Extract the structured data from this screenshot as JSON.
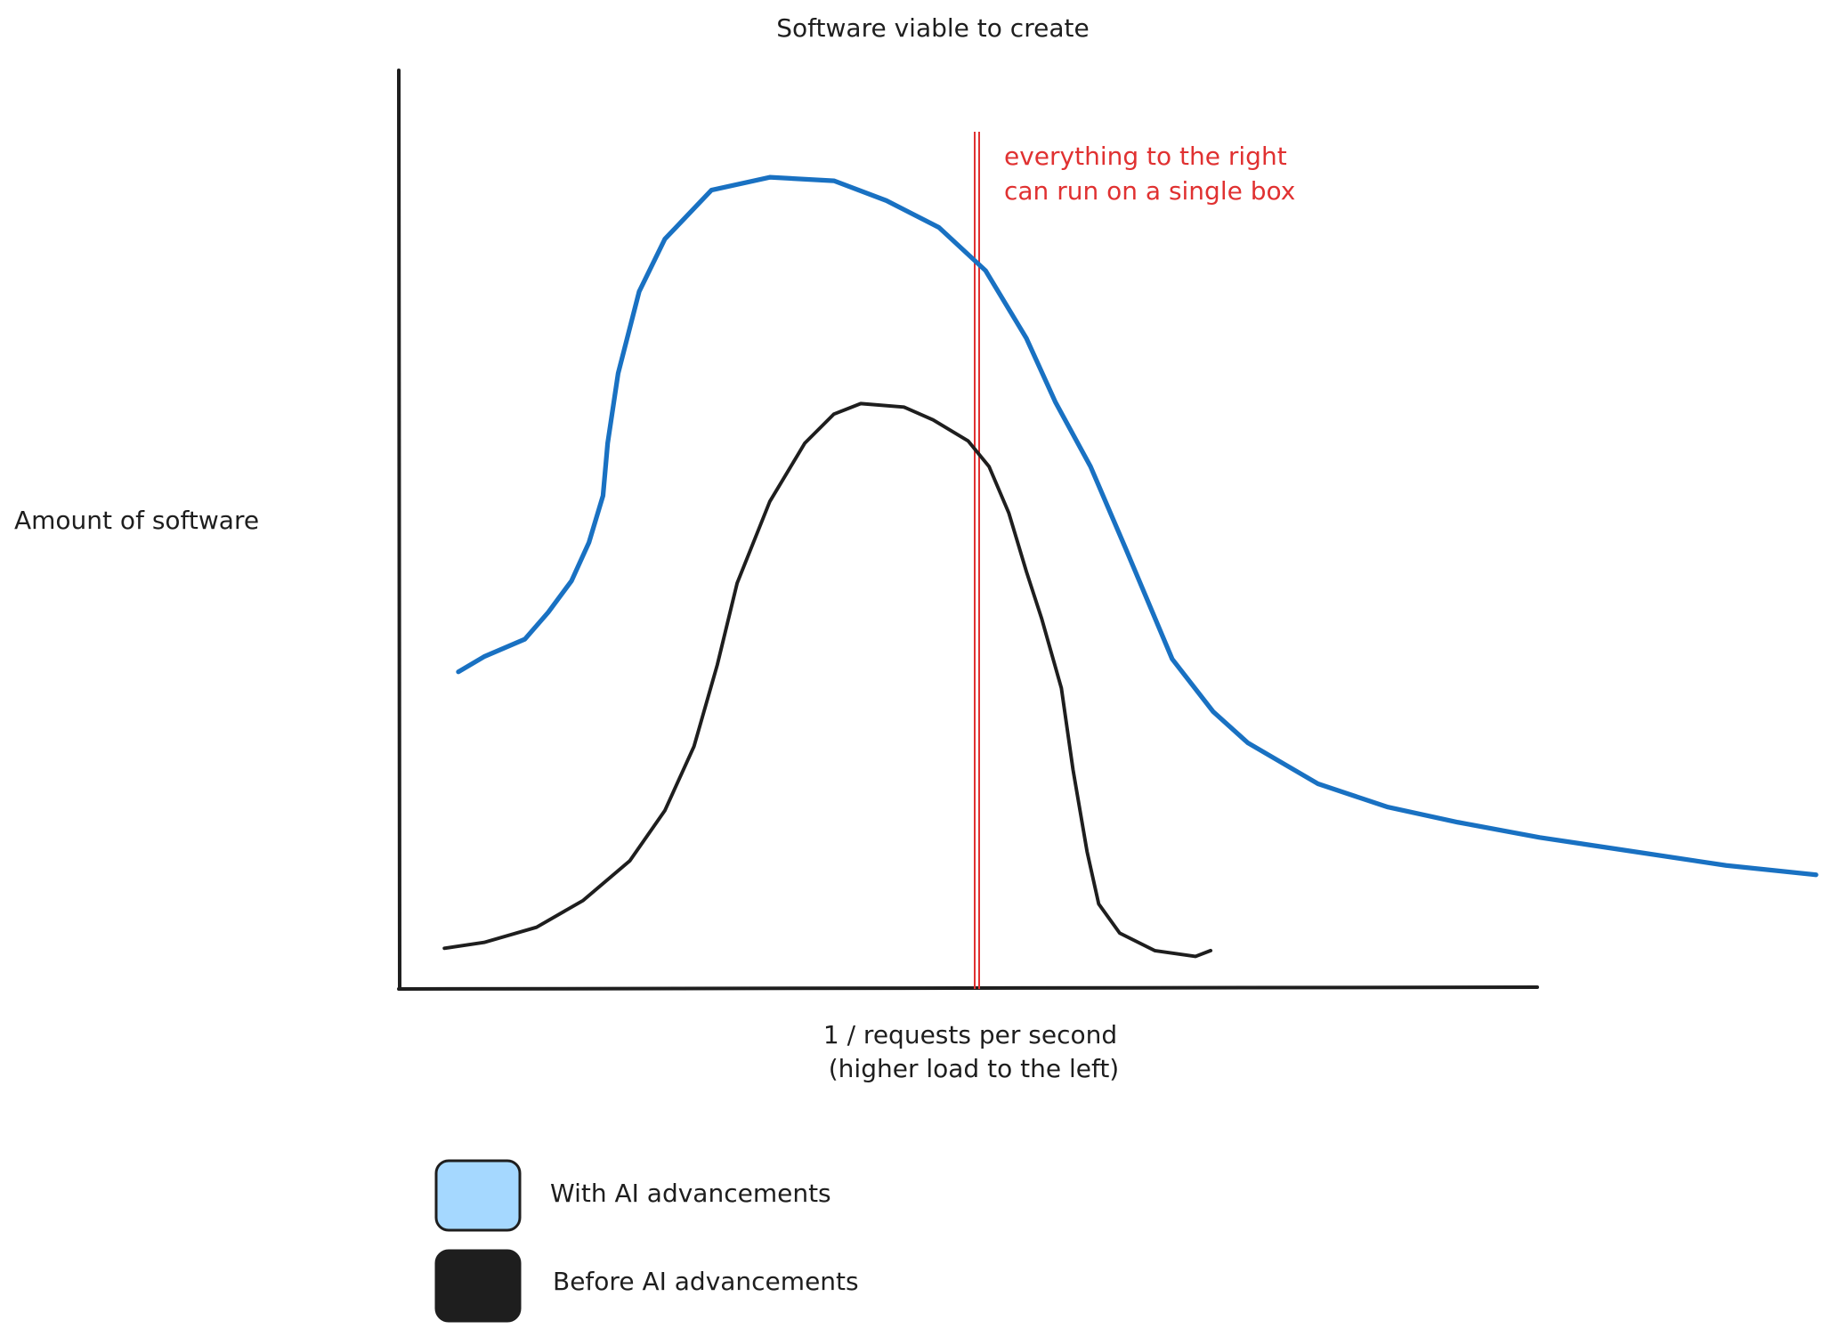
{
  "chart_data": {
    "type": "line",
    "title": "Software viable to create",
    "y_label": "Amount of software",
    "x_label": [
      "1 / requests per second",
      "(higher load to the left)"
    ],
    "annotation": {
      "text": [
        "everything to the right",
        "can run on a single box"
      ],
      "color": "#e03131"
    },
    "series": [
      {
        "name": "With AI advancements",
        "color": "#1971c2",
        "swatch": "#a5d8ff"
      },
      {
        "name": "Before AI advancements",
        "color": "#1e1e1e",
        "swatch": "#1e1e1e"
      }
    ]
  }
}
